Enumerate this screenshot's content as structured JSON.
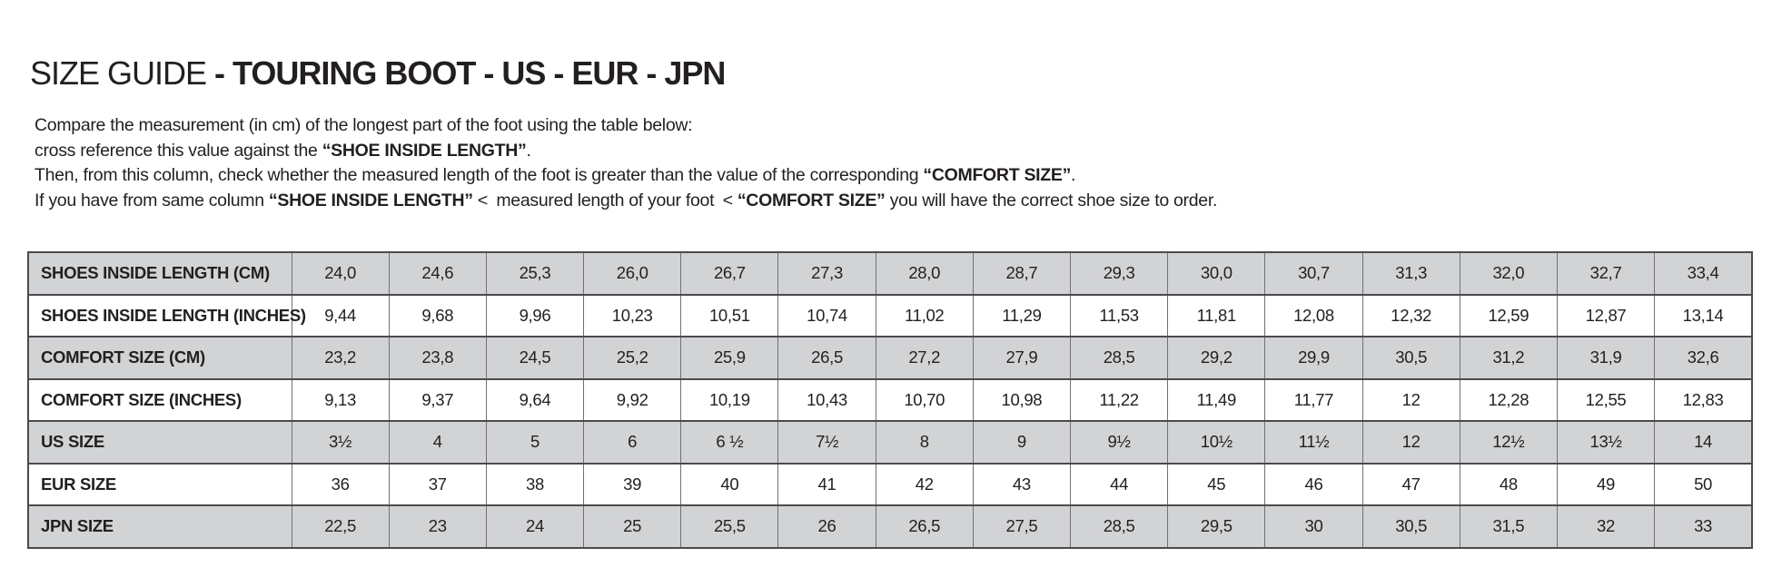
{
  "page": {
    "title": {
      "regular": "SIZE GUIDE ",
      "bold": "- TOURING BOOT - US - EUR - JPN"
    }
  },
  "intro": {
    "lines": [
      [
        {
          "t": "Compare the measurement (in cm) of the longest part of the foot using the table below:",
          "b": false
        }
      ],
      [
        {
          "t": "cross reference this value against the ",
          "b": false
        },
        {
          "t": "“SHOE INSIDE LENGTH”",
          "b": true
        },
        {
          "t": ".",
          "b": false
        }
      ],
      [
        {
          "t": "Then, from this column, check whether the measured length of the foot is greater than the value of the corresponding ",
          "b": false
        },
        {
          "t": "“COMFORT SIZE”",
          "b": true
        },
        {
          "t": ".",
          "b": false
        }
      ],
      [
        {
          "t": "If you have from same column ",
          "b": false
        },
        {
          "t": "“SHOE INSIDE LENGTH”",
          "b": true
        },
        {
          "t": " < measured length of your foot < ",
          "b": false
        },
        {
          "t": "“COMFORT SIZE”",
          "b": true
        },
        {
          "t": " you will have the correct shoe size to order.",
          "b": false
        }
      ]
    ]
  },
  "table": {
    "rows": [
      {
        "label": "SHOES INSIDE LENGTH (CM)",
        "values": [
          "24,0",
          "24,6",
          "25,3",
          "26,0",
          "26,7",
          "27,3",
          "28,0",
          "28,7",
          "29,3",
          "30,0",
          "30,7",
          "31,3",
          "32,0",
          "32,7",
          "33,4"
        ]
      },
      {
        "label": "SHOES INSIDE LENGTH (INCHES)",
        "values": [
          "9,44",
          "9,68",
          "9,96",
          "10,23",
          "10,51",
          "10,74",
          "11,02",
          "11,29",
          "11,53",
          "11,81",
          "12,08",
          "12,32",
          "12,59",
          "12,87",
          "13,14"
        ]
      },
      {
        "label": "COMFORT SIZE (CM)",
        "values": [
          "23,2",
          "23,8",
          "24,5",
          "25,2",
          "25,9",
          "26,5",
          "27,2",
          "27,9",
          "28,5",
          "29,2",
          "29,9",
          "30,5",
          "31,2",
          "31,9",
          "32,6"
        ]
      },
      {
        "label": "COMFORT SIZE (INCHES)",
        "values": [
          "9,13",
          "9,37",
          "9,64",
          "9,92",
          "10,19",
          "10,43",
          "10,70",
          "10,98",
          "11,22",
          "11,49",
          "11,77",
          "12",
          "12,28",
          "12,55",
          "12,83"
        ]
      },
      {
        "label": "US SIZE",
        "values": [
          "3½",
          "4",
          "5",
          "6",
          "6 ½",
          "7½",
          "8",
          "9",
          "9½",
          "10½",
          "11½",
          "12",
          "12½",
          "13½",
          "14"
        ]
      },
      {
        "label": "EUR SIZE",
        "values": [
          "36",
          "37",
          "38",
          "39",
          "40",
          "41",
          "42",
          "43",
          "44",
          "45",
          "46",
          "47",
          "48",
          "49",
          "50"
        ]
      },
      {
        "label": "JPN SIZE",
        "values": [
          "22,5",
          "23",
          "24",
          "25",
          "25,5",
          "26",
          "26,5",
          "27,5",
          "28,5",
          "29,5",
          "30",
          "30,5",
          "31,5",
          "32",
          "33"
        ]
      }
    ]
  },
  "colors": {
    "row_shaded": "#d2d3d5",
    "row_plain": "#ffffff",
    "border_dark": "#4b4b4d",
    "border_light": "#717175",
    "text": "#231f20"
  }
}
